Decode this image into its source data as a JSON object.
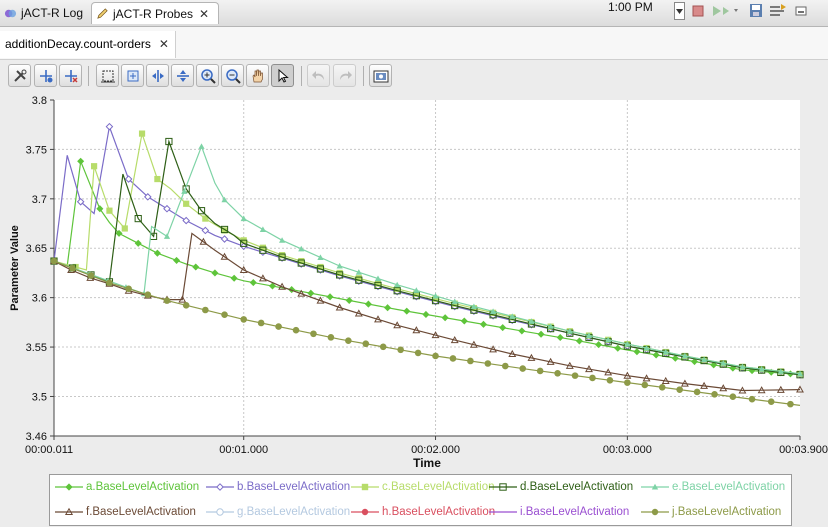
{
  "window": {
    "tabs": [
      {
        "label": "jACT-R Log",
        "active": false
      },
      {
        "label": "jACT-R Probes",
        "active": true
      }
    ],
    "clock": "1:00 PM"
  },
  "editor": {
    "tab_label": "additionDecay.count-orders"
  },
  "toolbar": {
    "tools": [
      "properties",
      "add-marker",
      "remove-marker",
      "zoom-region",
      "zoom-region-alt",
      "fit-horizontal",
      "fit-vertical",
      "zoom-in",
      "zoom-out",
      "pan",
      "select",
      "undo",
      "redo",
      "save-image"
    ]
  },
  "chart_data": {
    "type": "line",
    "title": "",
    "xlabel": "Time",
    "ylabel": "Parameter Value",
    "xlim": [
      0.011,
      3.9
    ],
    "ylim": [
      3.46,
      3.8
    ],
    "x_ticks": [
      "00:00.011",
      "00:01.000",
      "00:02.000",
      "00:03.000",
      "00:03.900"
    ],
    "x_tick_values": [
      0.011,
      1.0,
      2.0,
      3.0,
      3.9
    ],
    "y_ticks": [
      "3.46",
      "3.5",
      "3.55",
      "3.6",
      "3.65",
      "3.7",
      "3.75",
      "3.8"
    ],
    "y_tick_values": [
      3.46,
      3.5,
      3.55,
      3.6,
      3.65,
      3.7,
      3.75,
      3.8
    ],
    "grid": true,
    "legend_position": "bottom",
    "series": [
      {
        "name": "a.BaseLevelActivation",
        "color": "#5ec43a",
        "marker": "diamond-filled",
        "points": [
          [
            0.011,
            3.637
          ],
          [
            0.08,
            3.632
          ],
          [
            0.15,
            3.738
          ],
          [
            0.25,
            3.69
          ],
          [
            0.3,
            3.676
          ],
          [
            0.35,
            3.665
          ],
          [
            0.45,
            3.655
          ],
          [
            0.55,
            3.645
          ],
          [
            0.7,
            3.634
          ],
          [
            0.85,
            3.625
          ],
          [
            1.0,
            3.617
          ],
          [
            1.2,
            3.61
          ],
          [
            1.5,
            3.599
          ],
          [
            1.8,
            3.588
          ],
          [
            2.1,
            3.578
          ],
          [
            2.4,
            3.568
          ],
          [
            2.7,
            3.558
          ],
          [
            3.0,
            3.547
          ],
          [
            3.3,
            3.537
          ],
          [
            3.6,
            3.527
          ],
          [
            3.9,
            3.522
          ]
        ]
      },
      {
        "name": "b.BaseLevelActivation",
        "color": "#7b6cc8",
        "marker": "diamond-open",
        "points": [
          [
            0.011,
            3.637
          ],
          [
            0.08,
            3.744
          ],
          [
            0.15,
            3.697
          ],
          [
            0.22,
            3.685
          ],
          [
            0.3,
            3.773
          ],
          [
            0.4,
            3.72
          ],
          [
            0.5,
            3.702
          ],
          [
            0.6,
            3.69
          ],
          [
            0.7,
            3.678
          ],
          [
            0.85,
            3.663
          ],
          [
            1.0,
            3.652
          ],
          [
            1.2,
            3.64
          ],
          [
            1.5,
            3.622
          ],
          [
            1.8,
            3.606
          ],
          [
            2.1,
            3.591
          ],
          [
            2.4,
            3.577
          ],
          [
            2.7,
            3.564
          ],
          [
            3.0,
            3.551
          ],
          [
            3.3,
            3.54
          ],
          [
            3.6,
            3.529
          ],
          [
            3.9,
            3.522
          ]
        ]
      },
      {
        "name": "c.BaseLevelActivation",
        "color": "#b7dc6a",
        "marker": "square-filled",
        "points": [
          [
            0.011,
            3.637
          ],
          [
            0.18,
            3.628
          ],
          [
            0.22,
            3.733
          ],
          [
            0.3,
            3.688
          ],
          [
            0.38,
            3.67
          ],
          [
            0.47,
            3.766
          ],
          [
            0.55,
            3.72
          ],
          [
            0.62,
            3.71
          ],
          [
            0.7,
            3.695
          ],
          [
            0.8,
            3.68
          ],
          [
            0.9,
            3.668
          ],
          [
            1.0,
            3.658
          ],
          [
            1.2,
            3.643
          ],
          [
            1.5,
            3.625
          ],
          [
            1.8,
            3.609
          ],
          [
            2.1,
            3.594
          ],
          [
            2.4,
            3.58
          ],
          [
            2.7,
            3.566
          ],
          [
            3.0,
            3.553
          ],
          [
            3.3,
            3.541
          ],
          [
            3.6,
            3.53
          ],
          [
            3.9,
            3.523
          ]
        ]
      },
      {
        "name": "d.BaseLevelActivation",
        "color": "#2e5f16",
        "marker": "square-open",
        "points": [
          [
            0.011,
            3.637
          ],
          [
            0.3,
            3.616
          ],
          [
            0.37,
            3.725
          ],
          [
            0.45,
            3.68
          ],
          [
            0.53,
            3.662
          ],
          [
            0.61,
            3.758
          ],
          [
            0.7,
            3.71
          ],
          [
            0.78,
            3.688
          ],
          [
            0.85,
            3.675
          ],
          [
            0.95,
            3.663
          ],
          [
            1.0,
            3.655
          ],
          [
            1.2,
            3.641
          ],
          [
            1.5,
            3.623
          ],
          [
            1.8,
            3.607
          ],
          [
            2.1,
            3.592
          ],
          [
            2.4,
            3.578
          ],
          [
            2.7,
            3.564
          ],
          [
            3.0,
            3.551
          ],
          [
            3.3,
            3.54
          ],
          [
            3.6,
            3.529
          ],
          [
            3.9,
            3.522
          ]
        ]
      },
      {
        "name": "e.BaseLevelActivation",
        "color": "#7ed3a6",
        "marker": "triangle-filled",
        "points": [
          [
            0.011,
            3.637
          ],
          [
            0.48,
            3.604
          ],
          [
            0.52,
            3.672
          ],
          [
            0.6,
            3.662
          ],
          [
            0.78,
            3.753
          ],
          [
            0.85,
            3.716
          ],
          [
            0.9,
            3.699
          ],
          [
            1.0,
            3.68
          ],
          [
            1.2,
            3.658
          ],
          [
            1.5,
            3.632
          ],
          [
            1.8,
            3.613
          ],
          [
            2.1,
            3.596
          ],
          [
            2.4,
            3.581
          ],
          [
            2.7,
            3.566
          ],
          [
            3.0,
            3.553
          ],
          [
            3.3,
            3.541
          ],
          [
            3.6,
            3.53
          ],
          [
            3.9,
            3.523
          ]
        ]
      },
      {
        "name": "f.BaseLevelActivation",
        "color": "#6b4a36",
        "marker": "triangle-open",
        "points": [
          [
            0.011,
            3.637
          ],
          [
            0.1,
            3.628
          ],
          [
            0.2,
            3.62
          ],
          [
            0.3,
            3.614
          ],
          [
            0.4,
            3.607
          ],
          [
            0.5,
            3.602
          ],
          [
            0.6,
            3.598
          ],
          [
            0.68,
            3.598
          ],
          [
            0.73,
            3.665
          ],
          [
            0.85,
            3.648
          ],
          [
            1.0,
            3.628
          ],
          [
            1.2,
            3.611
          ],
          [
            1.5,
            3.59
          ],
          [
            1.8,
            3.572
          ],
          [
            2.1,
            3.557
          ],
          [
            2.4,
            3.543
          ],
          [
            2.7,
            3.531
          ],
          [
            3.0,
            3.521
          ],
          [
            3.3,
            3.513
          ],
          [
            3.6,
            3.506
          ],
          [
            3.9,
            3.507
          ]
        ]
      },
      {
        "name": "g.BaseLevelActivation",
        "color": "#b4c9e0",
        "marker": "circle-open",
        "points": []
      },
      {
        "name": "h.BaseLevelActivation",
        "color": "#d94f5f",
        "marker": "circle-filled",
        "points": []
      },
      {
        "name": "i.BaseLevelActivation",
        "color": "#9a4fd1",
        "marker": "line",
        "points": []
      },
      {
        "name": "j.BaseLevelActivation",
        "color": "#8d9a48",
        "marker": "circle-filled",
        "points": [
          [
            0.011,
            3.637
          ],
          [
            0.3,
            3.615
          ],
          [
            0.6,
            3.597
          ],
          [
            1.0,
            3.578
          ],
          [
            1.5,
            3.558
          ],
          [
            2.0,
            3.541
          ],
          [
            2.5,
            3.527
          ],
          [
            3.0,
            3.514
          ],
          [
            3.5,
            3.501
          ],
          [
            3.9,
            3.491
          ]
        ]
      }
    ]
  }
}
